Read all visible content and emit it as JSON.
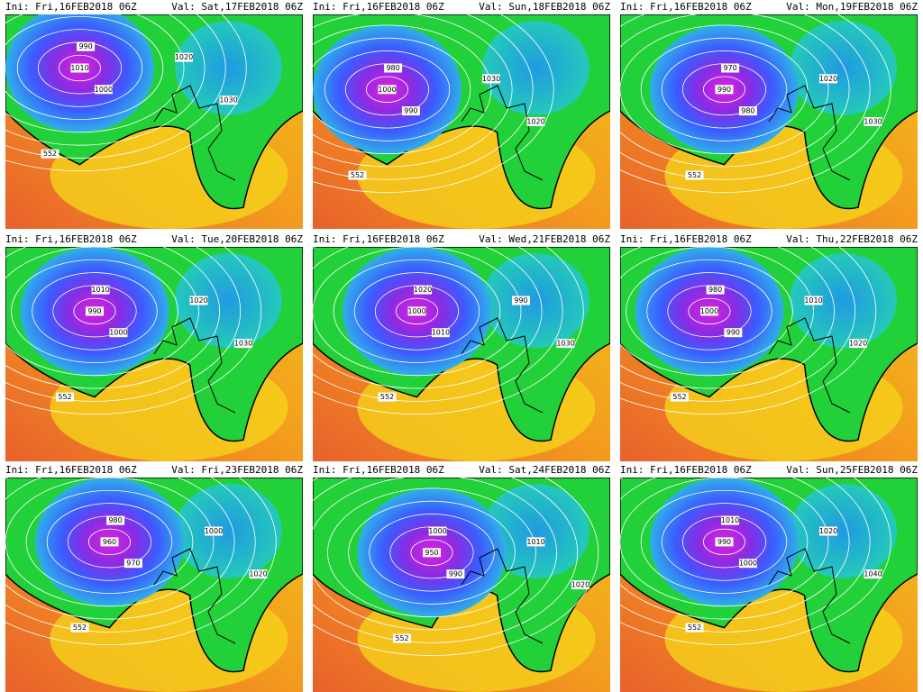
{
  "panels": [
    {
      "init": "Ini: Fri,16FEB2018 06Z",
      "valid": "Val: Sat,17FEB2018 06Z",
      "labels": [
        "1010",
        "1000",
        "990",
        "1020",
        "1030",
        "552"
      ]
    },
    {
      "init": "Ini: Fri,16FEB2018 06Z",
      "valid": "Val: Sun,18FEB2018 06Z",
      "labels": [
        "1000",
        "990",
        "980",
        "1030",
        "1020",
        "552"
      ]
    },
    {
      "init": "Ini: Fri,16FEB2018 06Z",
      "valid": "Val: Mon,19FEB2018 06Z",
      "labels": [
        "990",
        "980",
        "970",
        "1020",
        "1030",
        "552"
      ]
    },
    {
      "init": "Ini: Fri,16FEB2018 06Z",
      "valid": "Val: Tue,20FEB2018 06Z",
      "labels": [
        "990",
        "1000",
        "1010",
        "1020",
        "1030",
        "552"
      ]
    },
    {
      "init": "Ini: Fri,16FEB2018 06Z",
      "valid": "Val: Wed,21FEB2018 06Z",
      "labels": [
        "1000",
        "1010",
        "1020",
        "990",
        "1030",
        "552"
      ]
    },
    {
      "init": "Ini: Fri,16FEB2018 06Z",
      "valid": "Val: Thu,22FEB2018 06Z",
      "labels": [
        "1000",
        "990",
        "980",
        "1010",
        "1020",
        "552"
      ]
    },
    {
      "init": "Ini: Fri,16FEB2018 06Z",
      "valid": "Val: Fri,23FEB2018 06Z",
      "labels": [
        "960",
        "970",
        "980",
        "1000",
        "1020",
        "552"
      ]
    },
    {
      "init": "Ini: Fri,16FEB2018 06Z",
      "valid": "Val: Sat,24FEB2018 06Z",
      "labels": [
        "950",
        "990",
        "1000",
        "1010",
        "1020",
        "552"
      ]
    },
    {
      "init": "Ini: Fri,16FEB2018 06Z",
      "valid": "Val: Sun,25FEB2018 06Z",
      "labels": [
        "990",
        "1000",
        "1010",
        "1020",
        "1040",
        "552"
      ]
    }
  ]
}
